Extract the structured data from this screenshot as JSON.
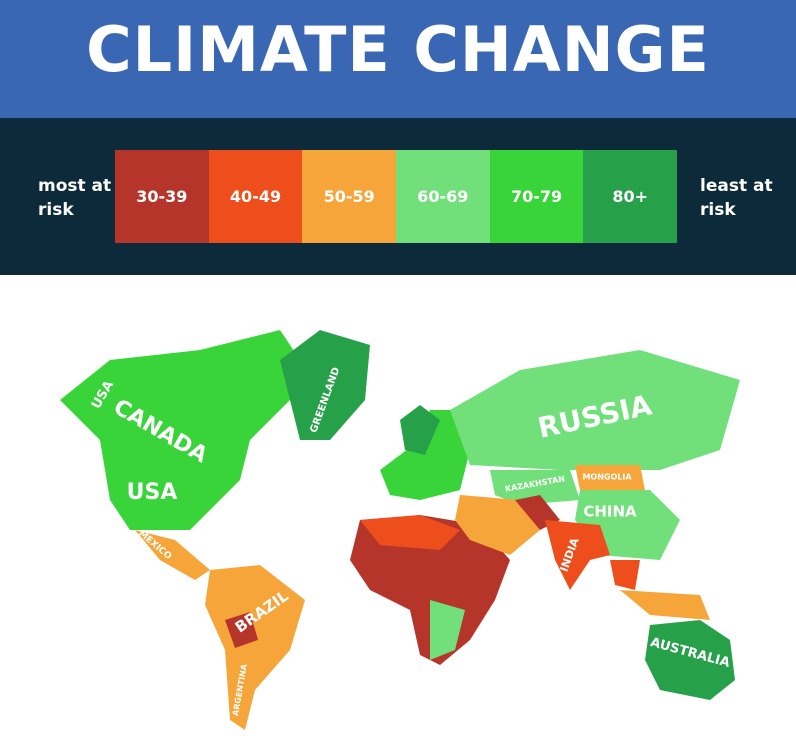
{
  "header": {
    "title": "CLIMATE CHANGE"
  },
  "legend": {
    "left_label": "most at risk",
    "right_label": "least at risk",
    "items": [
      {
        "label": "30-39",
        "color": "#b5352a"
      },
      {
        "label": "40-49",
        "color": "#ee4e1c"
      },
      {
        "label": "50-59",
        "color": "#f6a53b"
      },
      {
        "label": "60-69",
        "color": "#72e07a"
      },
      {
        "label": "70-79",
        "color": "#39d43a"
      },
      {
        "label": "80+",
        "color": "#27a04a"
      }
    ]
  },
  "map": {
    "labels": [
      "USA",
      "CANADA",
      "USA",
      "MEXICO",
      "GREENLAND",
      "RUSSIA",
      "KAZAKHSTAN",
      "MONGOLIA",
      "CHINA",
      "INDIA",
      "BRAZIL",
      "ARGENTINA",
      "AUSTRALIA"
    ]
  }
}
